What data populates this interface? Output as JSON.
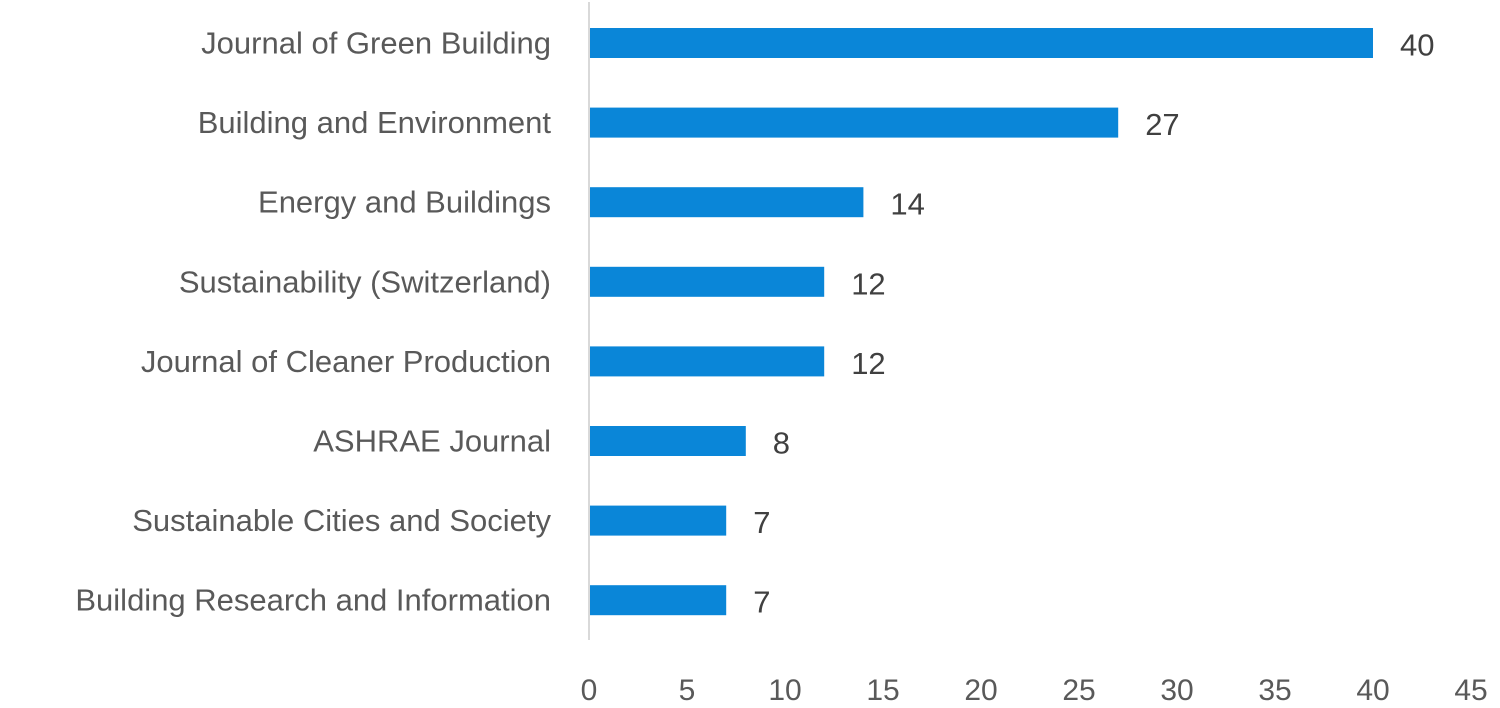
{
  "chart_data": {
    "type": "bar",
    "orientation": "horizontal",
    "categories": [
      "Journal of Green Building",
      "Building and Environment",
      "Energy and Buildings",
      "Sustainability (Switzerland)",
      "Journal of Cleaner Production",
      "ASHRAE Journal",
      "Sustainable Cities and Society",
      "Building Research and Information"
    ],
    "values": [
      40,
      27,
      14,
      12,
      12,
      8,
      7,
      7
    ],
    "xlim": [
      0,
      45
    ],
    "xticks": [
      0,
      5,
      10,
      15,
      20,
      25,
      30,
      35,
      40,
      45
    ],
    "title": "",
    "xlabel": "",
    "ylabel": "",
    "grid": false,
    "data_labels": true,
    "bar_color": "#0a86d8",
    "axis_color": "#d9d9d9"
  }
}
